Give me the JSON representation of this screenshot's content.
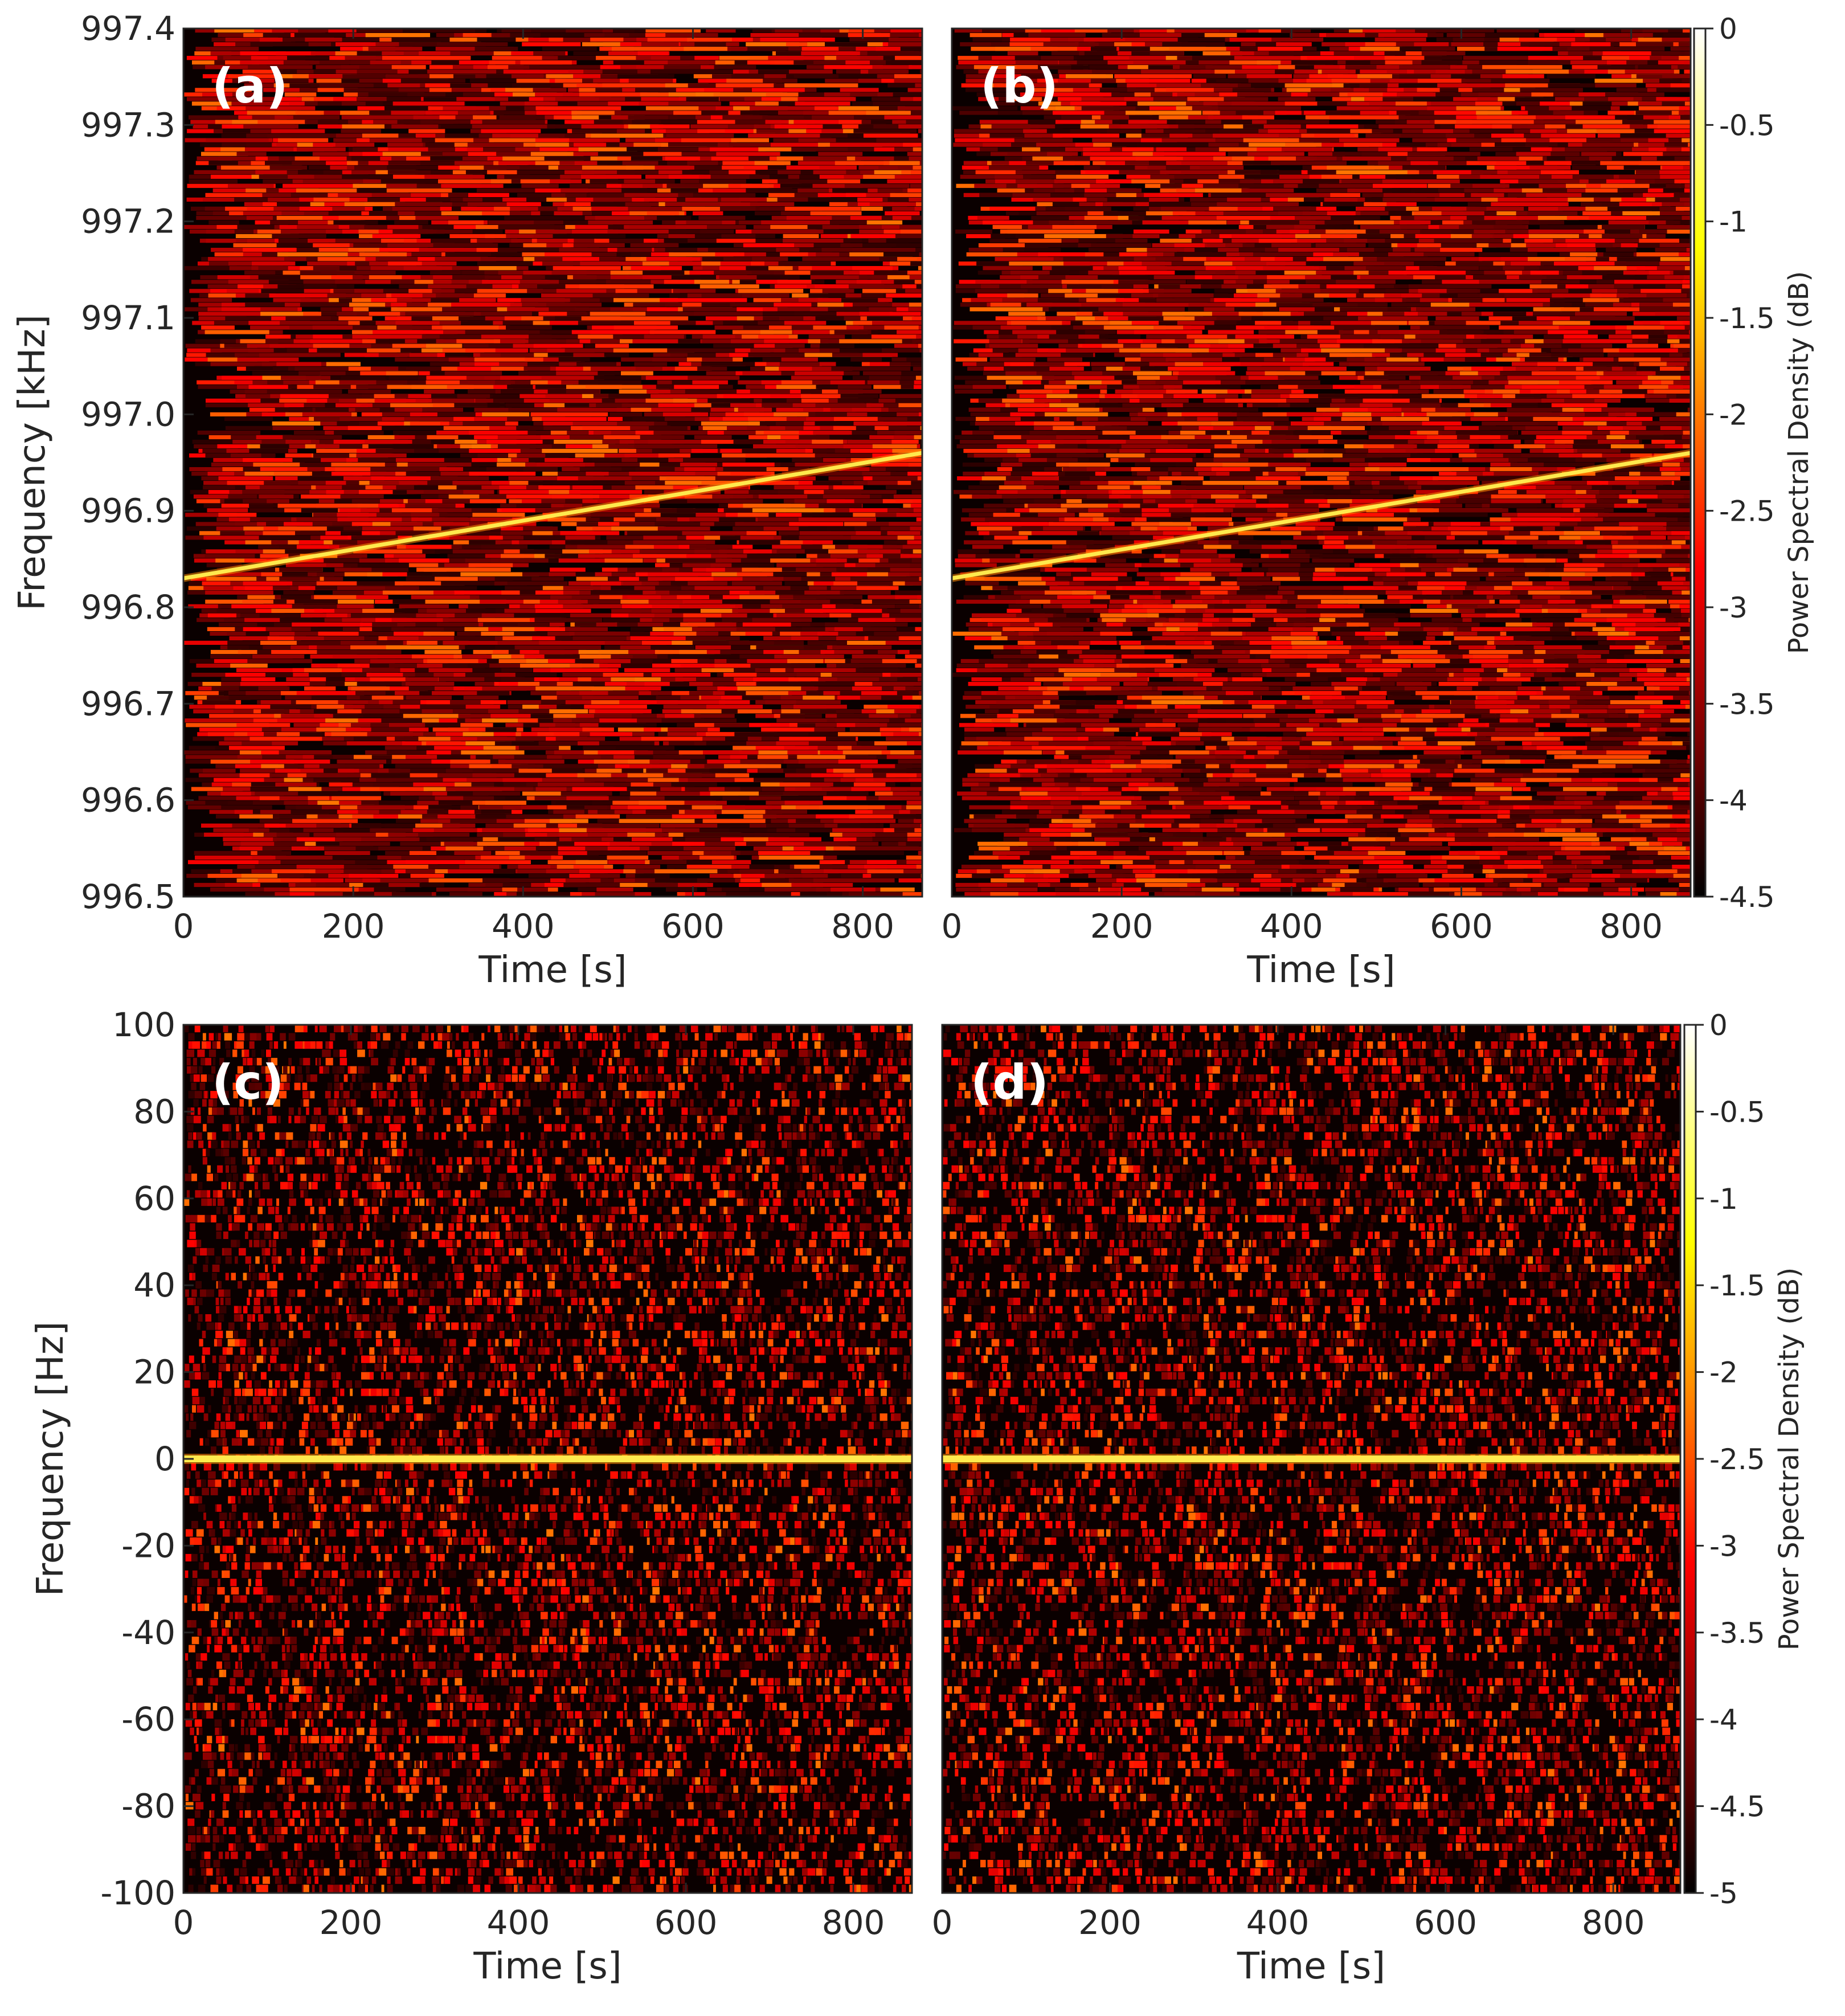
{
  "chart_data": [
    {
      "type": "heatmap",
      "panel_label": "(a)",
      "xlabel": "Time [s]",
      "ylabel": "Frequency [kHz]",
      "xlim": [
        0,
        870
      ],
      "ylim": [
        996.5,
        997.4
      ],
      "x_ticks": [
        "0",
        "200",
        "400",
        "600",
        "800"
      ],
      "y_ticks": [
        "996.5",
        "996.6",
        "996.7",
        "996.8",
        "996.9",
        "997.0",
        "997.1",
        "997.2",
        "997.3",
        "997.4"
      ],
      "signal": {
        "shape": "line",
        "t": [
          0,
          870
        ],
        "f": [
          996.83,
          996.96
        ]
      },
      "colormap": "hot",
      "clim": [
        -4.5,
        0
      ]
    },
    {
      "type": "heatmap",
      "panel_label": "(b)",
      "xlabel": "Time [s]",
      "ylabel": "",
      "xlim": [
        0,
        870
      ],
      "ylim": [
        996.5,
        997.4
      ],
      "x_ticks": [
        "0",
        "200",
        "400",
        "600",
        "800"
      ],
      "signal": {
        "shape": "line",
        "t": [
          0,
          870
        ],
        "f": [
          996.83,
          996.96
        ]
      },
      "colormap": "hot",
      "clim": [
        -4.5,
        0
      ],
      "colorbar": {
        "label": "Power Spectral Density (dB)",
        "ticks": [
          "0",
          "-0.5",
          "-1",
          "-1.5",
          "-2",
          "-2.5",
          "-3",
          "-3.5",
          "-4",
          "-4.5"
        ]
      }
    },
    {
      "type": "heatmap",
      "panel_label": "(c)",
      "xlabel": "Time [s]",
      "ylabel": "Frequency [Hz]",
      "xlim": [
        0,
        870
      ],
      "ylim": [
        -100,
        100
      ],
      "x_ticks": [
        "0",
        "200",
        "400",
        "600",
        "800"
      ],
      "y_ticks": [
        "-100",
        "-80",
        "-60",
        "-40",
        "-20",
        "0",
        "20",
        "40",
        "60",
        "80",
        "100"
      ],
      "signal": {
        "shape": "line",
        "t": [
          0,
          870
        ],
        "f": [
          0,
          0
        ]
      },
      "colormap": "hot",
      "clim": [
        -5,
        0
      ]
    },
    {
      "type": "heatmap",
      "panel_label": "(d)",
      "xlabel": "Time [s]",
      "ylabel": "",
      "xlim": [
        0,
        880
      ],
      "ylim": [
        -100,
        100
      ],
      "x_ticks": [
        "0",
        "200",
        "400",
        "600",
        "800"
      ],
      "signal": {
        "shape": "line",
        "t": [
          0,
          880
        ],
        "f": [
          0,
          0
        ]
      },
      "colormap": "hot",
      "clim": [
        -5,
        0
      ],
      "colorbar": {
        "label": "Power Spectral Density (dB)",
        "ticks": [
          "0",
          "-0.5",
          "-1",
          "-1.5",
          "-2",
          "-2.5",
          "-3",
          "-3.5",
          "-4",
          "-4.5",
          "-5"
        ]
      }
    }
  ]
}
